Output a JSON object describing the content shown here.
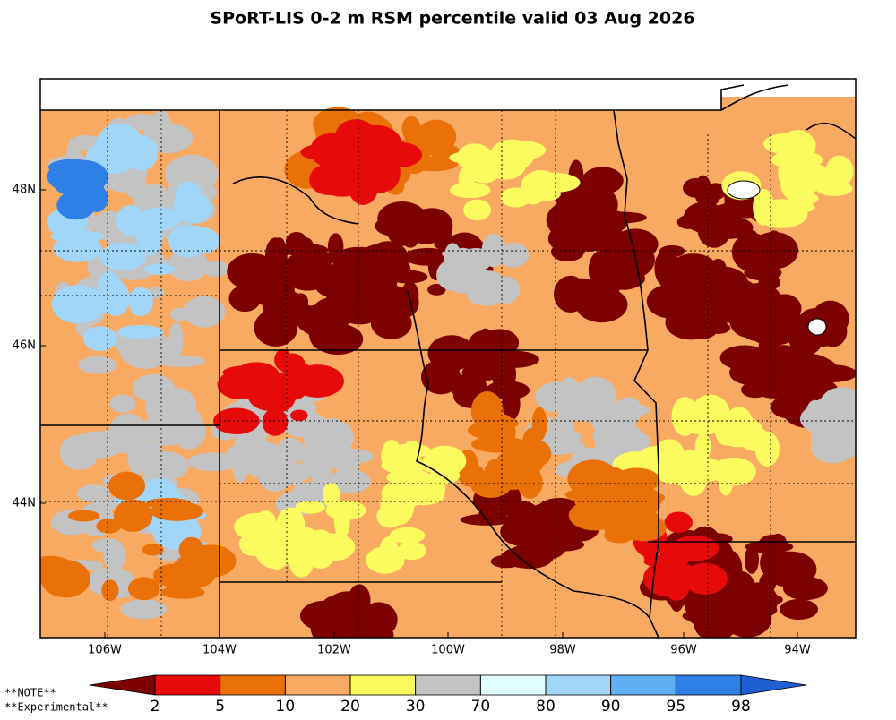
{
  "title": "SPoRT-LIS 0-2 m RSM percentile valid 03 Aug 2026",
  "map": {
    "lon_labels": [
      "106W",
      "104W",
      "102W",
      "100W",
      "98W",
      "96W",
      "94W"
    ],
    "lat_labels": [
      "48N",
      "46N",
      "44N"
    ]
  },
  "colorbar": {
    "ticks": [
      2,
      5,
      10,
      20,
      30,
      70,
      80,
      90,
      95,
      98
    ],
    "colors": [
      "#7d0000",
      "#e60a0a",
      "#ea7008",
      "#f8aa62",
      "#fbfa5f",
      "#c3c3c3",
      "#e1ffff",
      "#a2d6f8",
      "#62aef2",
      "#2e7fe6",
      "#1f5fd2"
    ]
  },
  "notes": [
    "**NOTE**",
    "**Experimental**"
  ]
}
